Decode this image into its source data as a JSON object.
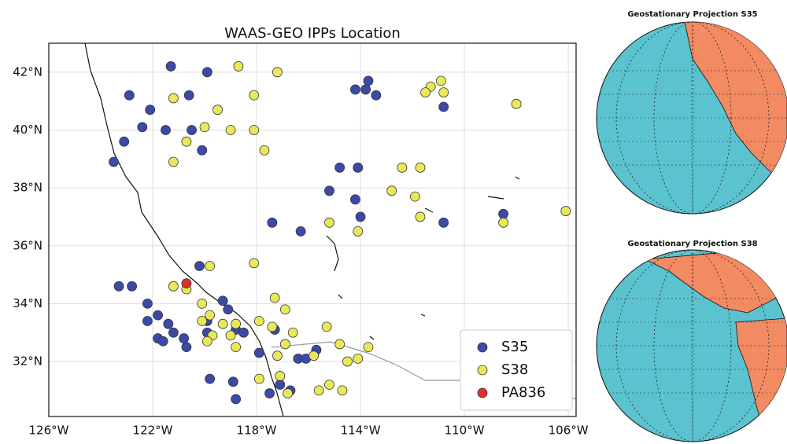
{
  "chart_data": [
    {
      "type": "scatter",
      "title": "WAAS-GEO IPPs Location",
      "xlim": [
        -126,
        -105.7
      ],
      "ylim": [
        30.1,
        43.0
      ],
      "xticks": [
        {
          "value": -126,
          "label": "126°W"
        },
        {
          "value": -122,
          "label": "122°W"
        },
        {
          "value": -118,
          "label": "118°W"
        },
        {
          "value": -114,
          "label": "114°W"
        },
        {
          "value": -110,
          "label": "110°W"
        },
        {
          "value": -106,
          "label": "106°W"
        }
      ],
      "yticks": [
        {
          "value": 32,
          "label": "32°N"
        },
        {
          "value": 34,
          "label": "34°N"
        },
        {
          "value": 36,
          "label": "36°N"
        },
        {
          "value": 38,
          "label": "38°N"
        },
        {
          "value": 40,
          "label": "40°N"
        },
        {
          "value": 42,
          "label": "42°N"
        }
      ],
      "grid": true,
      "legend": "lower right",
      "series": [
        {
          "name": "S35",
          "color": "#3b4aa8",
          "x": [
            -121.3,
            -119.9,
            -122.9,
            -120.6,
            -122.1,
            -122.4,
            -121.5,
            -120.5,
            -120.1,
            -123.1,
            -123.5,
            -114.8,
            -114.1,
            -113.7,
            -114.2,
            -113.8,
            -113.4,
            -110.8,
            -115.2,
            -114.2,
            -114.0,
            -117.4,
            -116.3,
            -110.8,
            -108.5,
            -120.2,
            -123.3,
            -122.8,
            -122.2,
            -119.3,
            -122.2,
            -121.8,
            -121.4,
            -121.2,
            -120.8,
            -121.8,
            -121.6,
            -120.7,
            -119.9,
            -119.9,
            -119.1,
            -118.8,
            -118.5,
            -117.9,
            -117.3,
            -116.4,
            -116.1,
            -115.7,
            -117.1,
            -116.7,
            -119.8,
            -118.9,
            -118.8,
            -117.5
          ],
          "values": [
            42.2,
            42.0,
            41.2,
            41.2,
            40.7,
            40.1,
            40.0,
            40.0,
            39.3,
            39.6,
            38.9,
            38.7,
            38.7,
            41.7,
            41.4,
            41.4,
            41.2,
            40.8,
            37.9,
            37.6,
            37.0,
            36.8,
            36.5,
            36.8,
            37.1,
            35.3,
            34.6,
            34.6,
            34.0,
            34.1,
            33.4,
            33.6,
            33.3,
            33.0,
            32.8,
            32.8,
            32.7,
            32.5,
            33.4,
            33.0,
            33.8,
            33.1,
            33.0,
            32.3,
            33.1,
            32.1,
            32.1,
            32.4,
            31.2,
            31.0,
            31.4,
            31.3,
            30.7,
            30.9
          ]
        },
        {
          "name": "S38",
          "color": "#e8e85a",
          "x": [
            -118.7,
            -117.2,
            -121.2,
            -118.1,
            -119.5,
            -119.0,
            -118.1,
            -120.0,
            -120.7,
            -121.2,
            -117.7,
            -111.3,
            -110.9,
            -111.5,
            -110.8,
            -108.0,
            -112.4,
            -111.7,
            -112.8,
            -111.9,
            -111.7,
            -115.2,
            -114.1,
            -108.5,
            -106.1,
            -118.1,
            -119.8,
            -121.2,
            -120.7,
            -120.1,
            -119.8,
            -117.3,
            -116.9,
            -120.1,
            -119.3,
            -118.8,
            -119.7,
            -119.0,
            -118.8,
            -119.9,
            -117.9,
            -117.4,
            -116.6,
            -116.9,
            -117.2,
            -115.3,
            -114.8,
            -113.7,
            -114.5,
            -114.1,
            -115.8,
            -117.9,
            -117.1,
            -116.8,
            -115.6,
            -115.2,
            -114.7
          ],
          "values": [
            42.2,
            42.0,
            41.1,
            41.2,
            40.7,
            40.0,
            40.0,
            40.1,
            39.6,
            38.9,
            39.3,
            41.5,
            41.7,
            41.3,
            41.3,
            40.9,
            38.7,
            38.7,
            37.9,
            37.7,
            37.0,
            36.8,
            36.5,
            36.8,
            37.2,
            35.4,
            35.3,
            34.6,
            34.5,
            34.0,
            33.6,
            34.2,
            33.8,
            33.4,
            33.3,
            33.3,
            32.9,
            32.9,
            32.5,
            32.7,
            33.4,
            33.2,
            33.0,
            32.6,
            32.2,
            33.2,
            32.6,
            32.5,
            32.0,
            32.1,
            32.2,
            31.4,
            31.5,
            30.9,
            31.0,
            31.2,
            31.0
          ]
        },
        {
          "name": "PA836",
          "color": "#e0302a",
          "x": [
            -120.7
          ],
          "values": [
            34.7
          ]
        }
      ]
    },
    {
      "type": "globe",
      "title": "Geostationary Projection S35"
    },
    {
      "type": "globe",
      "title": "Geostationary Projection S38"
    }
  ]
}
